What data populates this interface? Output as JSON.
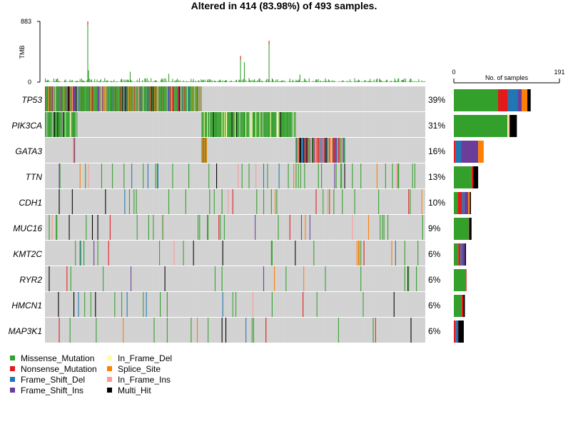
{
  "chart_data": {
    "type": "oncoplot",
    "title": "Altered in 414 (83.98%) of 493 samples.",
    "n_samples": 493,
    "n_altered": 414,
    "tmb": {
      "ylabel": "TMB",
      "ylim": [
        0,
        883
      ],
      "ticks": [
        "883",
        "0"
      ],
      "peaks": [
        {
          "sample": 55,
          "value": 883
        },
        {
          "sample": 290,
          "value": 600
        },
        {
          "sample": 253,
          "value": 380
        },
        {
          "sample": 258,
          "value": 290
        },
        {
          "sample": 56,
          "value": 170
        },
        {
          "sample": 110,
          "value": 150
        },
        {
          "sample": 160,
          "value": 120
        },
        {
          "sample": 330,
          "value": 110
        }
      ]
    },
    "genes": [
      {
        "name": "TP53",
        "pct": "39%",
        "segments": [
          [
            0,
            203,
            0
          ],
          [
            203,
            493,
            -1
          ]
        ],
        "bar": {
          "Missense_Mutation": 80,
          "Nonsense_Mutation": 18,
          "Frame_Shift_Del": 17,
          "Frame_Shift_Ins": 8,
          "Splice_Site": 10,
          "Multi_Hit": 6
        }
      },
      {
        "name": "PIK3CA",
        "pct": "31%",
        "segments": [
          [
            0,
            42,
            0
          ],
          [
            42,
            203,
            -1
          ],
          [
            203,
            325,
            0
          ],
          [
            325,
            493,
            -1
          ]
        ],
        "bar": {
          "Missense_Mutation": 97,
          "In_Frame_Del": 2,
          "In_Frame_Ins": 2,
          "Multi_Hit": 13
        }
      },
      {
        "name": "GATA3",
        "pct": "16%",
        "segments": [
          [
            203,
            210,
            2
          ],
          [
            210,
            325,
            -1
          ],
          [
            325,
            390,
            3
          ],
          [
            0,
            0,
            -1
          ]
        ],
        "bar": {
          "Nonsense_Mutation": 3,
          "Frame_Shift_Del": 10,
          "Frame_Shift_Ins": 31,
          "Splice_Site": 10
        }
      },
      {
        "name": "TTN",
        "pct": "13%",
        "segments": [],
        "bar": {
          "Missense_Mutation": 32,
          "Nonsense_Mutation": 3,
          "Multi_Hit": 9
        }
      },
      {
        "name": "CDH1",
        "pct": "10%",
        "segments": [],
        "bar": {
          "Missense_Mutation": 7,
          "Nonsense_Mutation": 8,
          "Frame_Shift_Del": 4,
          "Frame_Shift_Ins": 7,
          "Splice_Site": 3,
          "Multi_Hit": 2
        }
      },
      {
        "name": "MUC16",
        "pct": "9%",
        "segments": [],
        "bar": {
          "Missense_Mutation": 27,
          "Nonsense_Mutation": 1,
          "Multi_Hit": 4
        }
      },
      {
        "name": "KMT2C",
        "pct": "6%",
        "segments": [],
        "bar": {
          "Missense_Mutation": 8,
          "Nonsense_Mutation": 4,
          "Frame_Shift_Del": 3,
          "Frame_Shift_Ins": 5,
          "Multi_Hit": 2
        }
      },
      {
        "name": "RYR2",
        "pct": "6%",
        "segments": [],
        "bar": {
          "Missense_Mutation": 22,
          "Nonsense_Mutation": 1
        }
      },
      {
        "name": "HMCN1",
        "pct": "6%",
        "segments": [],
        "bar": {
          "Missense_Mutation": 14,
          "Nonsense_Mutation": 3,
          "Multi_Hit": 3
        }
      },
      {
        "name": "MAP3K1",
        "pct": "6%",
        "segments": [],
        "bar": {
          "Nonsense_Mutation": 3,
          "Frame_Shift_Del": 3,
          "Frame_Shift_Ins": 2,
          "Multi_Hit": 10
        }
      }
    ],
    "sidebar": {
      "xlabel": "No. of samples",
      "ticks": [
        "0",
        "191"
      ],
      "xlim": [
        0,
        191
      ]
    },
    "legend": [
      {
        "label": "Missense_Mutation",
        "color": "#33a02c"
      },
      {
        "label": "Nonsense_Mutation",
        "color": "#e31a1c"
      },
      {
        "label": "Frame_Shift_Del",
        "color": "#1f78b4"
      },
      {
        "label": "Frame_Shift_Ins",
        "color": "#6a3d9a"
      },
      {
        "label": "In_Frame_Del",
        "color": "#ffff99"
      },
      {
        "label": "Splice_Site",
        "color": "#ff7f00"
      },
      {
        "label": "In_Frame_Ins",
        "color": "#fb9a99"
      },
      {
        "label": "Multi_Hit",
        "color": "#000000"
      }
    ]
  }
}
